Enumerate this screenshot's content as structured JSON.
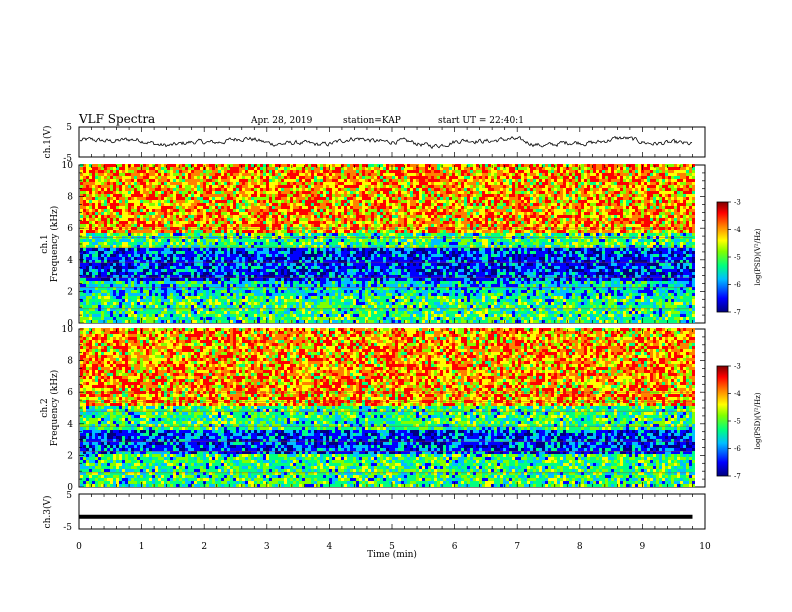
{
  "header": {
    "title": "VLF Spectra",
    "date": "Apr. 28, 2019",
    "station": "station=KAP",
    "start": "start UT =  22:40:1"
  },
  "chart_data": [
    {
      "type": "line",
      "panel": "ch1-voltage",
      "ylabel": "ch.1(V)",
      "ylim": [
        -5,
        5
      ],
      "yticks": [
        "5",
        "-5"
      ],
      "xlim": [
        0,
        10
      ],
      "note": "waveform trace, roughly -1 V to +2 V, ends near 9.8 min"
    },
    {
      "type": "heatmap",
      "panel": "ch1-spectrogram",
      "ylabel": "Frequency (kHz)",
      "ylabel2": "ch.1",
      "ylim": [
        0,
        10
      ],
      "yticks": [
        "10",
        "8",
        "6",
        "4",
        "2",
        "0"
      ],
      "xlim": [
        0,
        10
      ],
      "x_end": 9.8,
      "bands": [
        {
          "from": 5.6,
          "to": 10.0,
          "level": "high"
        },
        {
          "from": 4.6,
          "to": 5.6,
          "level": "mid"
        },
        {
          "from": 2.6,
          "to": 4.6,
          "level": "low"
        },
        {
          "from": 1.6,
          "to": 2.6,
          "level": "mid-low"
        },
        {
          "from": 0.0,
          "to": 1.6,
          "level": "mid"
        }
      ],
      "colorbar": {
        "label": "log(PSD)(V²/Hz)",
        "ticks": [
          "-3",
          "-4",
          "-5",
          "-6",
          "-7"
        ]
      }
    },
    {
      "type": "heatmap",
      "panel": "ch2-spectrogram",
      "ylabel": "Frequency (kHz)",
      "ylabel2": "ch.2",
      "ylim": [
        0,
        10
      ],
      "yticks": [
        "10",
        "8",
        "6",
        "4",
        "2",
        "0"
      ],
      "xlim": [
        0,
        10
      ],
      "x_end": 9.8,
      "bands": [
        {
          "from": 5.0,
          "to": 10.0,
          "level": "high"
        },
        {
          "from": 3.6,
          "to": 5.0,
          "level": "mid"
        },
        {
          "from": 2.0,
          "to": 3.6,
          "level": "low"
        },
        {
          "from": 0.0,
          "to": 2.0,
          "level": "mid"
        }
      ],
      "colorbar": {
        "label": "log(PSD)(V²/Hz)",
        "ticks": [
          "-3",
          "-4",
          "-5",
          "-6",
          "-7"
        ]
      }
    },
    {
      "type": "line",
      "panel": "ch3-voltage",
      "ylabel": "ch.3(V)",
      "ylim": [
        -5,
        5
      ],
      "yticks": [
        "5",
        "-5"
      ],
      "xlim": [
        0,
        10
      ],
      "xlabel": "Time (min)",
      "xticks": [
        "0",
        "1",
        "2",
        "3",
        "4",
        "5",
        "6",
        "7",
        "8",
        "9",
        "10"
      ],
      "series": [
        {
          "x": [
            0,
            9.8
          ],
          "y": [
            -1.5,
            -1.5
          ]
        }
      ]
    }
  ],
  "colors": {
    "colormap": [
      "#00007f",
      "#0000ff",
      "#00bfff",
      "#00ff80",
      "#80ff00",
      "#ffff00",
      "#ff8000",
      "#ff0000",
      "#7f0000"
    ],
    "axis": "#000000",
    "line": "#000000"
  }
}
